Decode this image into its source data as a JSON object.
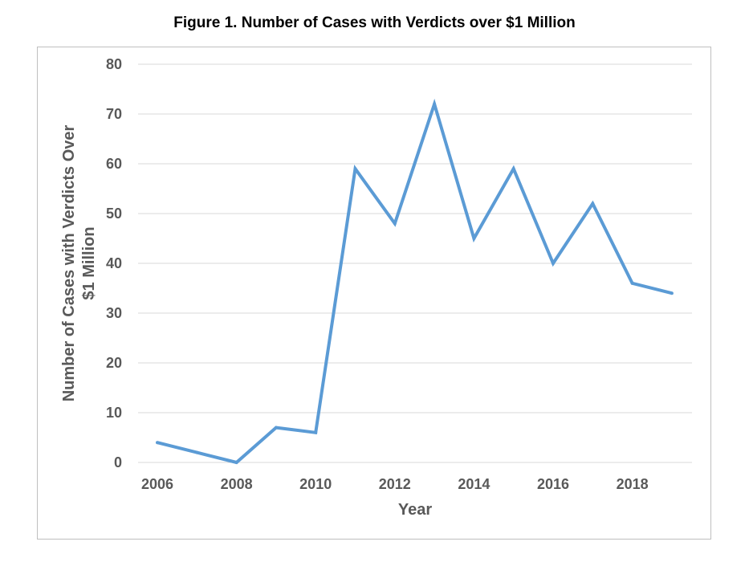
{
  "chart_data": {
    "type": "line",
    "title": "Figure 1.  Number of Cases with Verdicts over $1 Million",
    "xlabel": "Year",
    "ylabel_lines": [
      "Number of Cases with Verdicts Over",
      "$1 Million"
    ],
    "x": [
      2006,
      2007,
      2008,
      2009,
      2010,
      2011,
      2012,
      2013,
      2014,
      2015,
      2016,
      2017,
      2018,
      2019
    ],
    "series": [
      {
        "values": [
          4,
          2,
          0,
          7,
          6,
          59,
          48,
          72,
          45,
          59,
          40,
          52,
          36,
          34
        ]
      }
    ],
    "xticks": [
      2006,
      2008,
      2010,
      2012,
      2014,
      2016,
      2018
    ],
    "yticks": [
      0,
      10,
      20,
      30,
      40,
      50,
      60,
      70,
      80
    ],
    "ylim": [
      0,
      80
    ],
    "grid": "horizontal",
    "legend": "none",
    "line_color": "#5b9bd5",
    "grid_color": "#d9d9d9"
  }
}
